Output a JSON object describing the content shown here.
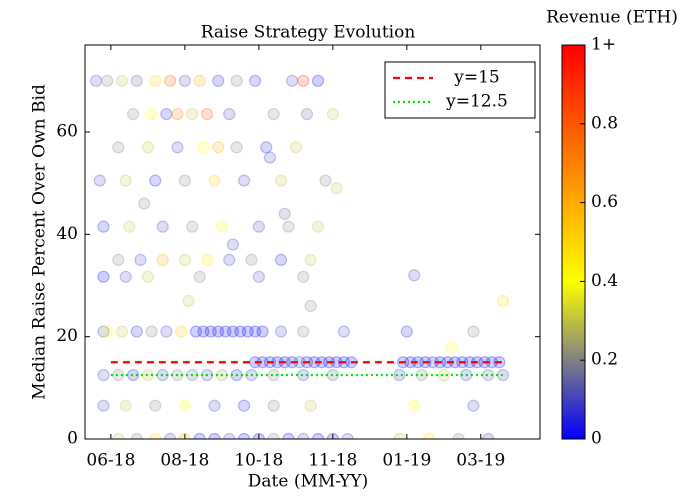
{
  "chart_data": {
    "type": "scatter",
    "title": "Raise Strategy Evolution",
    "xlabel": "Date (MM-YY)",
    "ylabel": "Median Raise Percent Over Own Bid",
    "colorbar_label": "Revenue (ETH)",
    "xlim": [
      -0.35,
      5.8
    ],
    "ylim": [
      0,
      77
    ],
    "xticks": [
      {
        "value": 0,
        "label": "06-18"
      },
      {
        "value": 1,
        "label": "08-18"
      },
      {
        "value": 2,
        "label": "10-18"
      },
      {
        "value": 3,
        "label": "11-18"
      },
      {
        "value": 4,
        "label": "01-19"
      },
      {
        "value": 5,
        "label": "03-19"
      }
    ],
    "yticks": [
      0,
      20,
      40,
      60
    ],
    "clim": [
      0,
      1
    ],
    "cticks": [
      0,
      0.2,
      0.4,
      0.6,
      0.8,
      {
        "value": 1,
        "label": "1+"
      }
    ],
    "colormap": [
      {
        "at": 0,
        "color": "#0000ff"
      },
      {
        "at": 0.2,
        "color": "#808080"
      },
      {
        "at": 0.4,
        "color": "#ffff00"
      },
      {
        "at": 0.7,
        "color": "#ff8000"
      },
      {
        "at": 1,
        "color": "#ff0000"
      }
    ],
    "opacity": 0.18,
    "x": [
      -0.2,
      -0.05,
      0.15,
      0.35,
      0.6,
      0.8,
      1.0,
      1.2,
      1.45,
      1.7,
      1.95,
      2.45,
      2.6,
      2.8,
      0.3,
      0.55,
      0.75,
      0.9,
      1.1,
      1.3,
      1.6,
      2.2,
      2.65,
      3.0,
      0.5,
      0.9,
      1.25,
      1.45,
      1.7,
      2.1,
      2.5,
      0.1,
      -0.15,
      0.2,
      0.6,
      1.0,
      1.4,
      1.8,
      2.3,
      2.9,
      -0.1,
      0.25,
      0.7,
      1.1,
      1.5,
      2.0,
      2.4,
      2.8,
      0.1,
      0.4,
      0.7,
      1.0,
      1.3,
      1.6,
      1.9,
      2.3,
      2.7,
      -0.1,
      0.2,
      0.5,
      1.2,
      2.0,
      2.6,
      -0.1,
      0.15,
      0.35,
      0.55,
      0.75,
      0.95,
      1.15,
      1.25,
      1.35,
      1.45,
      1.55,
      1.65,
      1.75,
      1.85,
      1.95,
      2.05,
      2.3,
      2.6,
      3.15,
      4.0,
      4.9,
      -0.05,
      1.95,
      2.05,
      2.15,
      2.25,
      2.35,
      2.45,
      2.55,
      2.65,
      2.75,
      2.85,
      2.95,
      3.05,
      3.15,
      3.25,
      3.95,
      4.05,
      4.15,
      4.25,
      4.35,
      4.45,
      4.55,
      4.65,
      4.75,
      4.85,
      4.95,
      5.05,
      5.15,
      5.25,
      -0.1,
      0.1,
      0.3,
      0.5,
      0.7,
      0.9,
      1.1,
      1.3,
      1.5,
      1.7,
      1.9,
      2.2,
      2.6,
      3.0,
      3.9,
      4.2,
      4.5,
      4.8,
      5.1,
      5.3,
      -0.1,
      0.2,
      0.6,
      1.0,
      1.4,
      1.8,
      2.2,
      2.7,
      4.1,
      4.9,
      0.1,
      0.35,
      0.6,
      0.8,
      1.0,
      1.2,
      1.4,
      1.6,
      1.8,
      2.0,
      2.2,
      2.4,
      2.6,
      2.8,
      3.0,
      3.2,
      3.9,
      4.3,
      4.7,
      5.1,
      0.45,
      1.05,
      1.65,
      2.35,
      2.7,
      3.05,
      4.1,
      4.6,
      5.3,
      2.15
    ],
    "values": [
      70,
      70,
      70,
      70,
      70,
      70,
      70,
      70,
      70,
      70,
      70,
      70,
      70,
      70,
      63.5,
      63.5,
      63.5,
      63.5,
      63.5,
      63.5,
      63.5,
      63.5,
      63.5,
      63.5,
      57,
      57,
      57,
      57,
      57,
      57,
      57,
      57,
      50.5,
      50.5,
      50.5,
      50.5,
      50.5,
      50.5,
      50.5,
      50.5,
      41.5,
      41.5,
      41.5,
      41.5,
      41.5,
      41.5,
      41.5,
      41.5,
      35,
      35,
      35,
      35,
      35,
      35,
      35,
      35,
      35,
      31.7,
      31.7,
      31.7,
      31.7,
      31.7,
      31.7,
      21,
      21,
      21,
      21,
      21,
      21,
      21,
      21,
      21,
      21,
      21,
      21,
      21,
      21,
      21,
      21,
      21,
      21,
      21,
      21,
      21,
      21,
      15,
      15,
      15,
      15,
      15,
      15,
      15,
      15,
      15,
      15,
      15,
      15,
      15,
      15,
      15,
      15,
      15,
      15,
      15,
      15,
      15,
      15,
      15,
      15,
      15,
      15,
      15,
      15,
      12.5,
      12.5,
      12.5,
      12.5,
      12.5,
      12.5,
      12.5,
      12.5,
      12.5,
      12.5,
      12.5,
      12.5,
      12.5,
      12.5,
      12.5,
      12.5,
      12.5,
      12.5,
      12.5,
      12.5,
      6.5,
      6.5,
      6.5,
      6.5,
      6.5,
      6.5,
      6.5,
      6.5,
      6.5,
      6.5,
      0,
      0,
      0,
      0,
      0,
      0,
      0,
      0,
      0,
      0,
      0,
      0,
      0,
      0,
      0,
      0,
      0,
      0,
      0,
      0,
      46,
      27,
      38,
      44,
      26,
      49,
      32,
      18,
      27,
      55
    ],
    "revenue": [
      0.1,
      0.2,
      0.3,
      0.15,
      0.5,
      0.8,
      0.1,
      0.6,
      0.05,
      0.2,
      0.05,
      0.1,
      0.9,
      0,
      0.2,
      0.4,
      0.05,
      0.7,
      0.3,
      0.8,
      0.1,
      0.2,
      0.15,
      0.3,
      0.3,
      0.1,
      0.4,
      0.6,
      0.2,
      0.05,
      0.3,
      0.2,
      0.1,
      0.3,
      0.05,
      0.2,
      0.5,
      0.1,
      0.3,
      0.2,
      0.05,
      0.3,
      0.1,
      0.2,
      0.4,
      0.1,
      0.2,
      0.3,
      0.2,
      0.1,
      0.6,
      0.3,
      0.45,
      0.1,
      0.2,
      0.05,
      0.3,
      0,
      0.1,
      0.3,
      0.2,
      0.1,
      0.2,
      0.1,
      0.3,
      0.05,
      0.2,
      0.1,
      0.5,
      0,
      0,
      0,
      0,
      0,
      0,
      0,
      0,
      0,
      0,
      0.1,
      0.2,
      0.1,
      0.05,
      0.2,
      0.4,
      0,
      0,
      0,
      0,
      0,
      0,
      0.1,
      0,
      0,
      0,
      0,
      0,
      0,
      0,
      0,
      0,
      0,
      0,
      0.05,
      0,
      0,
      0,
      0,
      0,
      0,
      0,
      0,
      0,
      0.1,
      0.2,
      0.05,
      0.3,
      0.1,
      0.2,
      0.15,
      0.1,
      0.25,
      0.05,
      0.1,
      0.2,
      0.1,
      0.15,
      0.1,
      0.2,
      0.3,
      0.1,
      0.15,
      0.1,
      0.1,
      0.3,
      0.2,
      0.4,
      0.1,
      0.05,
      0.2,
      0.3,
      0.4,
      0.1,
      0.3,
      0.2,
      0.5,
      0.1,
      0.6,
      0,
      0,
      0.1,
      0,
      0,
      0.2,
      0,
      0.1,
      0,
      0,
      0.1,
      0.3,
      0.5,
      0.2,
      0.1,
      0.2,
      0.3,
      0.1,
      0.15,
      0.2,
      0.3,
      0.1,
      0.4,
      0.5,
      0.1
    ],
    "lines": [
      {
        "name": "y=15",
        "y": 15,
        "xrange": [
          0,
          5.34
        ],
        "color": "#ff0000",
        "dash": "dashed"
      },
      {
        "name": "y=12.5",
        "y": 12.5,
        "xrange": [
          0,
          5.34
        ],
        "color": "#00e000",
        "dash": "dotted"
      }
    ],
    "legend": "upper right"
  }
}
